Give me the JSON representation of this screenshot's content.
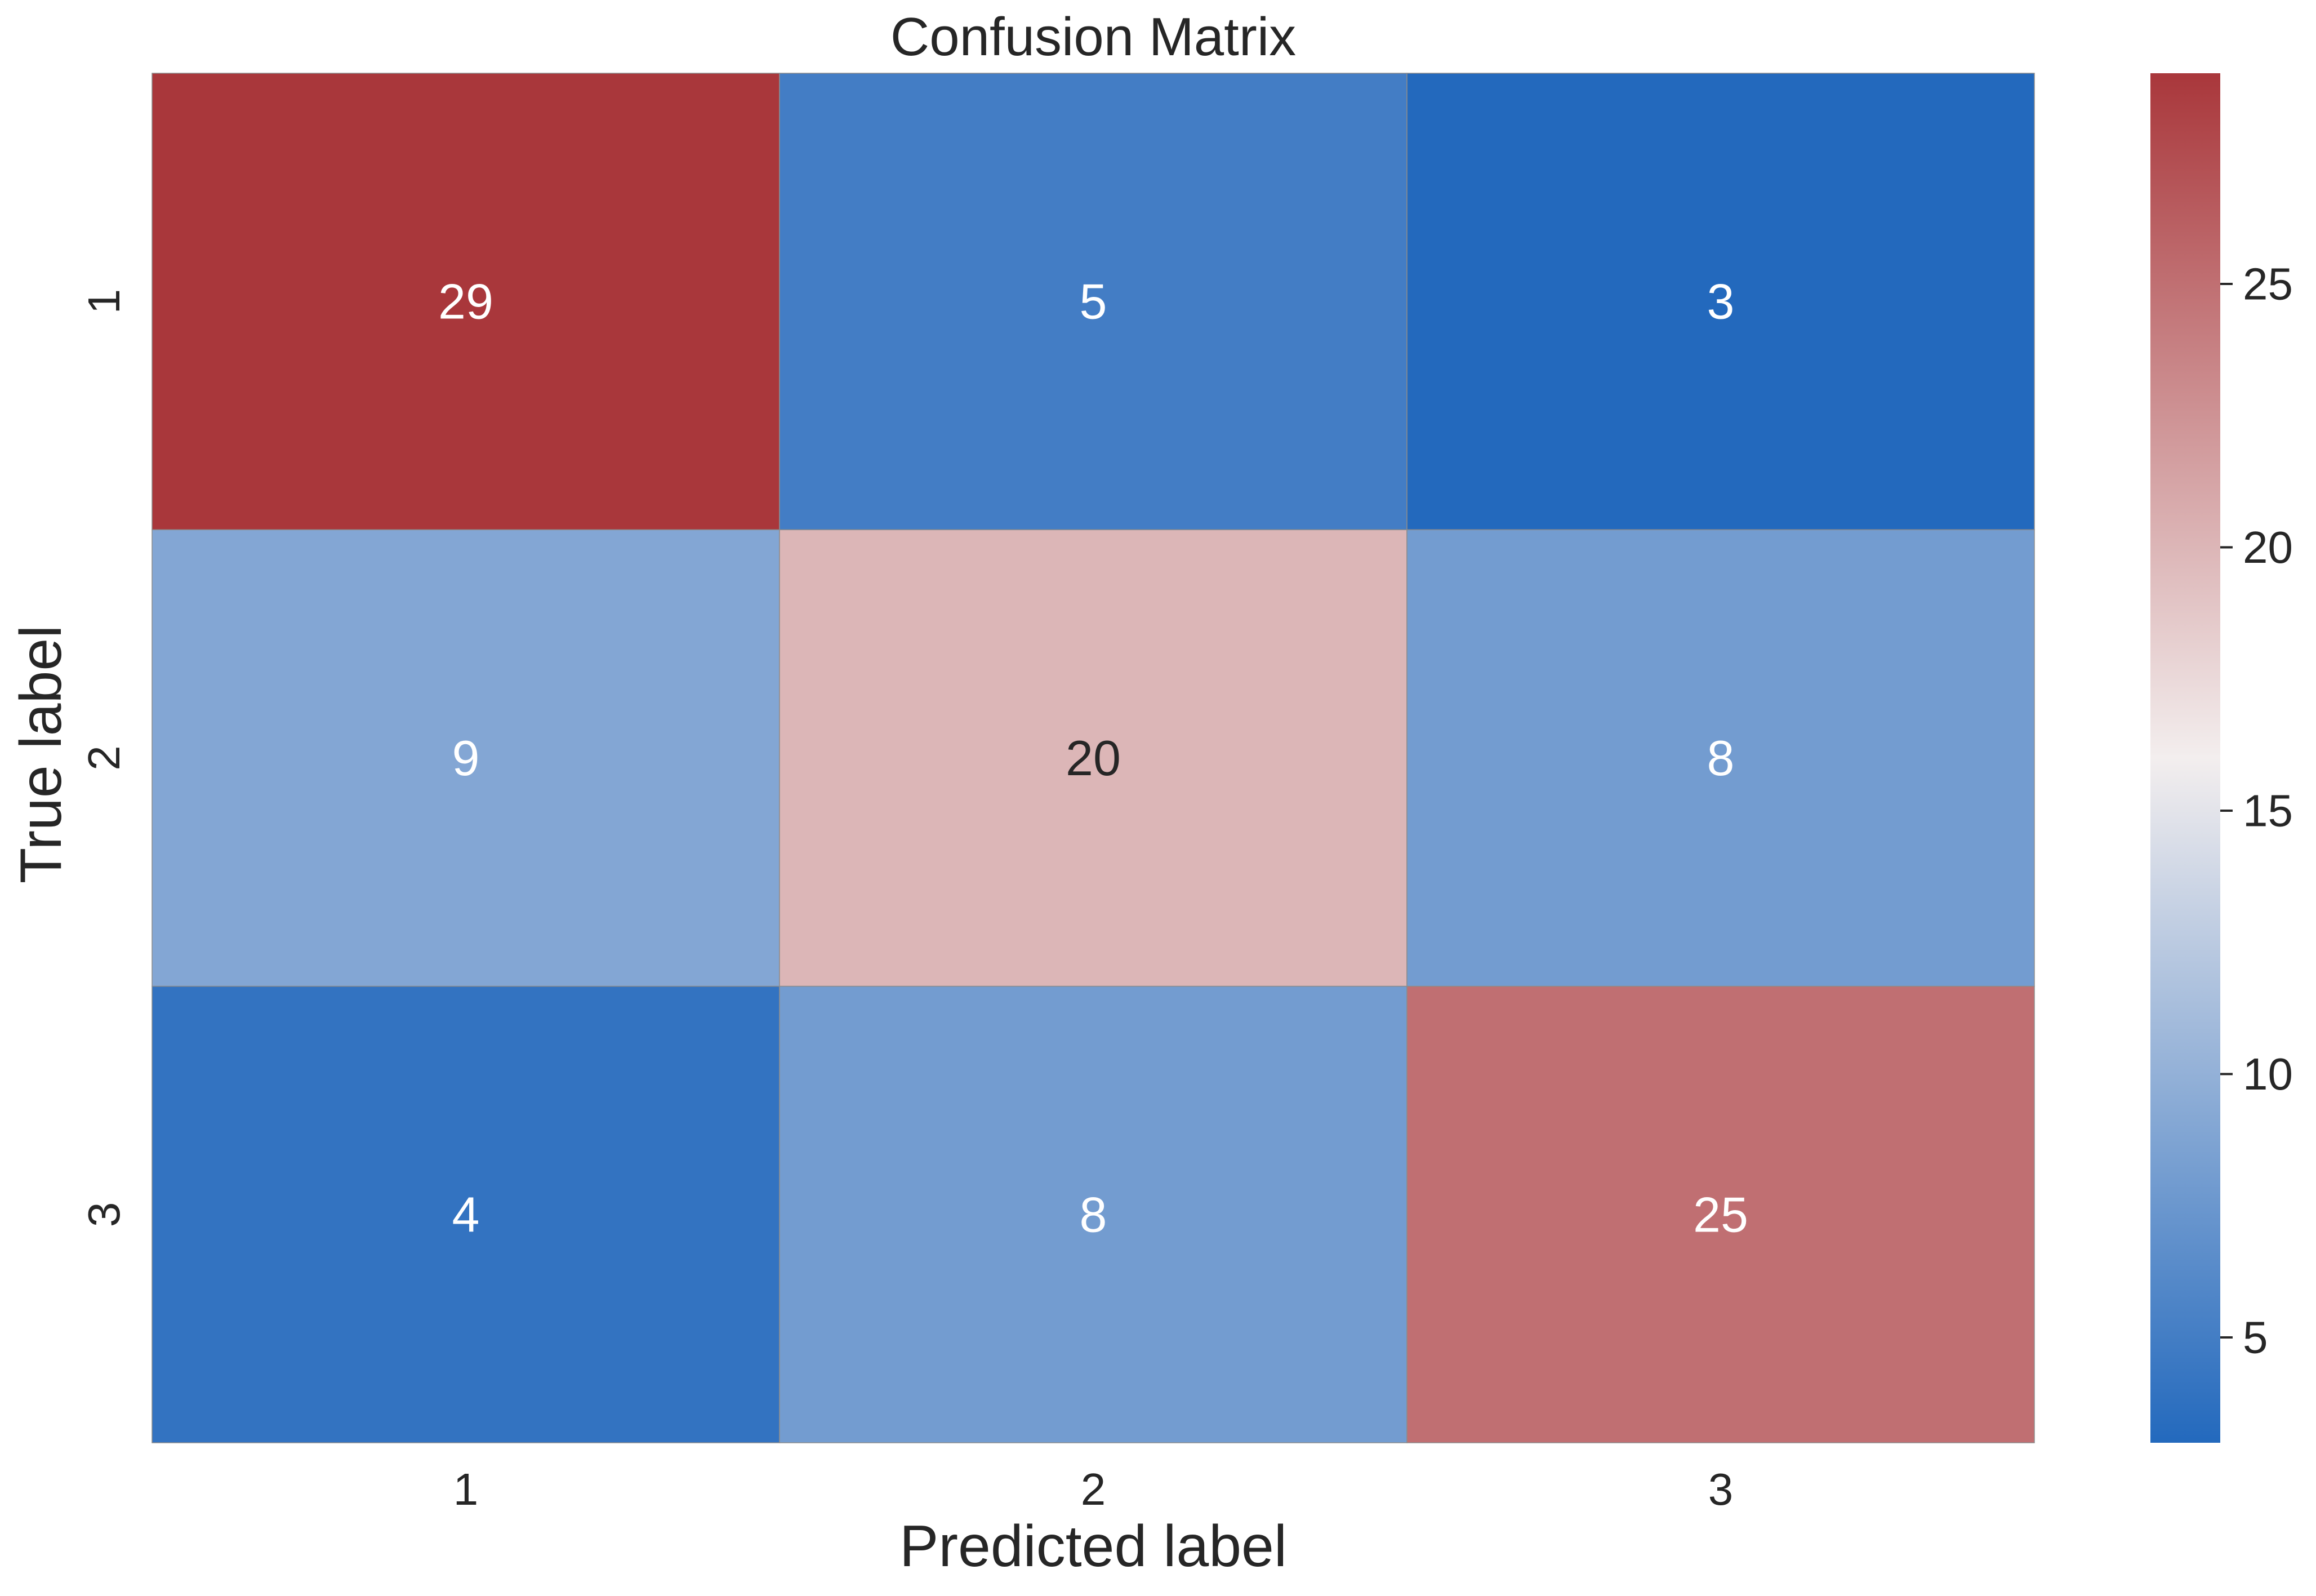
{
  "chart_data": {
    "type": "heatmap",
    "title": "Confusion Matrix",
    "xlabel": "Predicted label",
    "ylabel": "True label",
    "x_categories": [
      "1",
      "2",
      "3"
    ],
    "y_categories": [
      "1",
      "2",
      "3"
    ],
    "values": [
      [
        29,
        5,
        3
      ],
      [
        9,
        20,
        8
      ],
      [
        4,
        8,
        25
      ]
    ],
    "colormap": "vlag",
    "colormap_stops": [
      "#2369bd",
      "#f3eeee",
      "#a9373b"
    ],
    "value_range": [
      3,
      29
    ],
    "colorbar_ticks": [
      5,
      10,
      15,
      20,
      25
    ],
    "colorbar_tick_labels": [
      "5",
      "10",
      "15",
      "20",
      "25"
    ],
    "annotation_text_dark": "#262626",
    "annotation_text_light": "#ffffff",
    "grid_line_color": "#8c8c8c"
  }
}
